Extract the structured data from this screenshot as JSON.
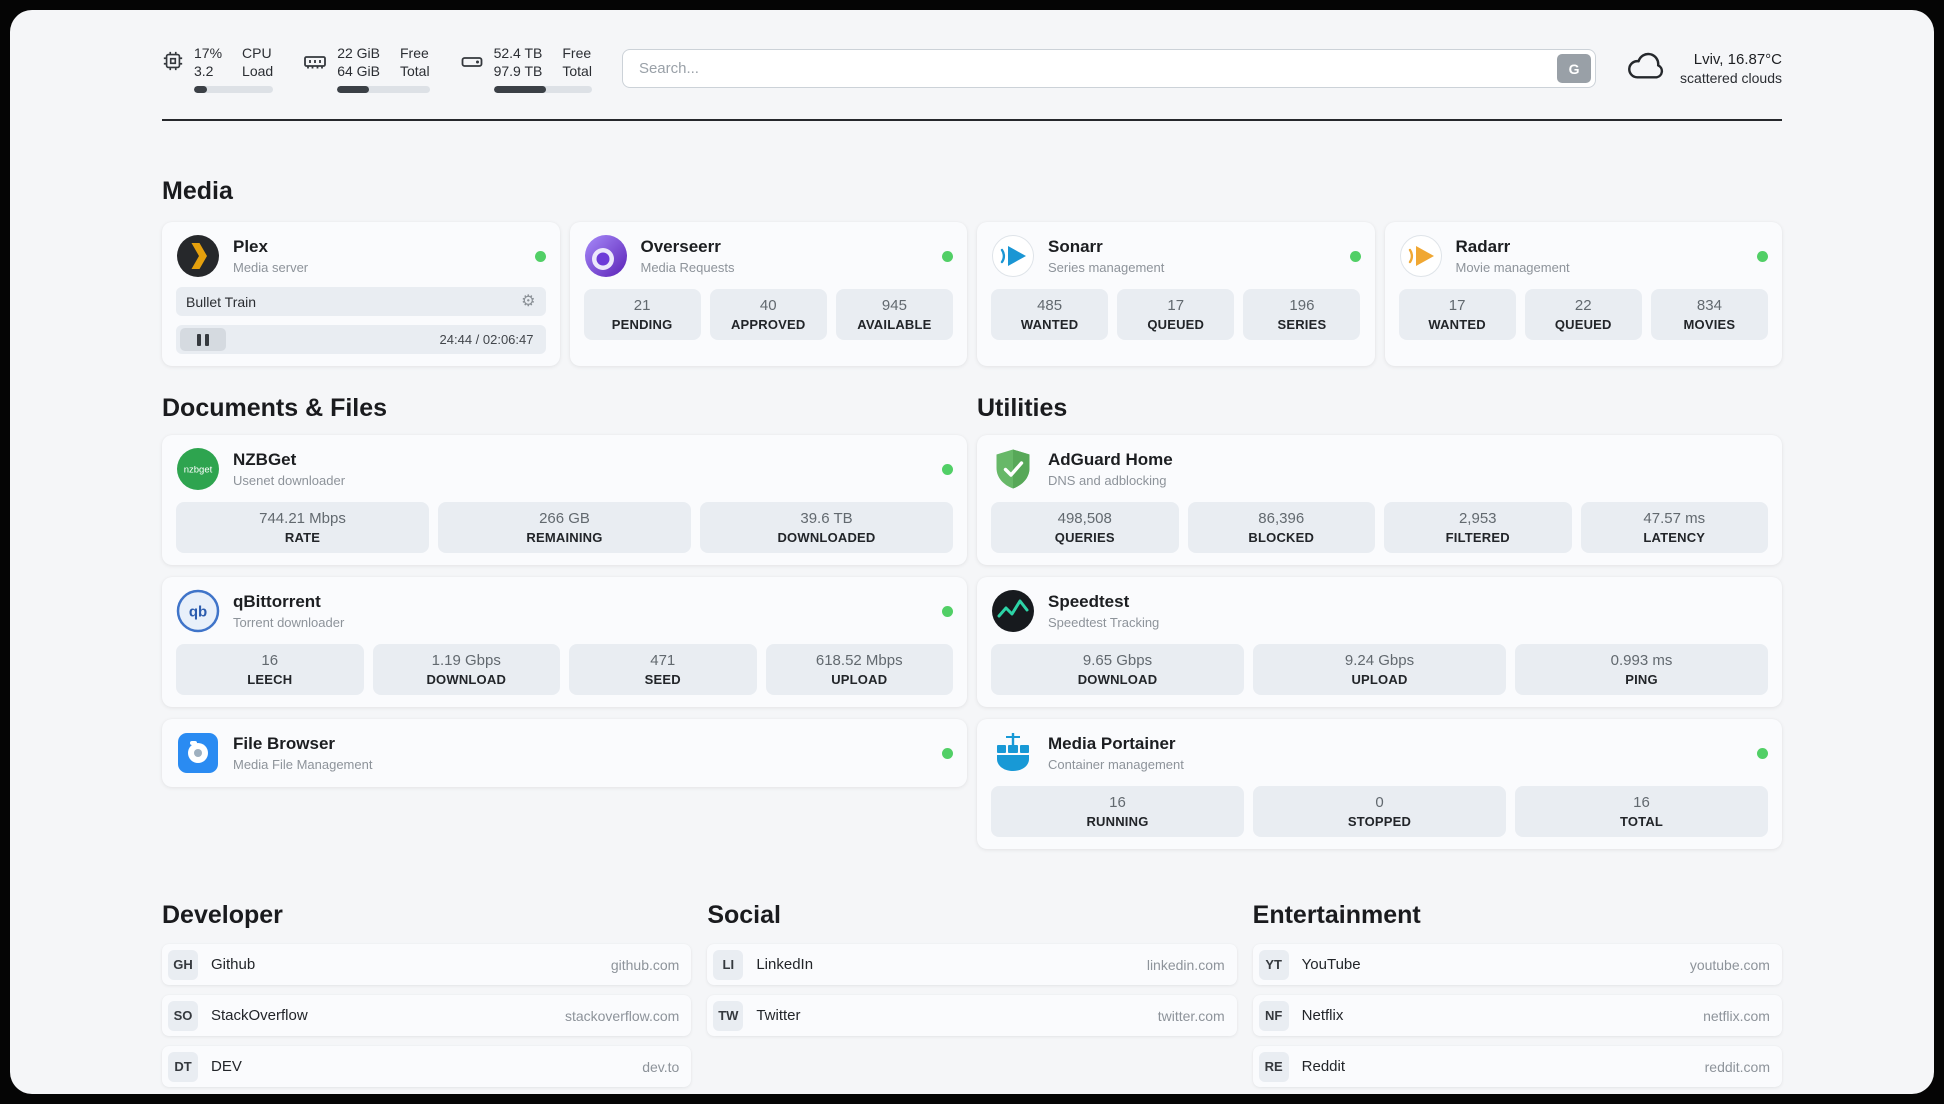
{
  "topbar": {
    "cpu": {
      "percent": "17%",
      "load": "3.2",
      "label_line1": "CPU",
      "label_line2": "Load",
      "bar_pct": 17
    },
    "ram": {
      "free": "22 GiB",
      "total": "64 GiB",
      "label_line1": "Free",
      "label_line2": "Total",
      "bar_pct": 34
    },
    "disk": {
      "free": "52.4 TB",
      "total": "97.9 TB",
      "label_line1": "Free",
      "label_line2": "Total",
      "bar_pct": 53
    },
    "search": {
      "placeholder": "Search...",
      "button_label": "G"
    },
    "weather": {
      "location": "Lviv, 16.87°C",
      "condition": "scattered clouds"
    }
  },
  "media": {
    "title": "Media",
    "plex": {
      "name": "Plex",
      "subtitle": "Media server",
      "now_playing": "Bullet Train",
      "time": "24:44 / 02:06:47"
    },
    "overseerr": {
      "name": "Overseerr",
      "subtitle": "Media Requests",
      "stats": [
        {
          "value": "21",
          "label": "PENDING"
        },
        {
          "value": "40",
          "label": "APPROVED"
        },
        {
          "value": "945",
          "label": "AVAILABLE"
        }
      ]
    },
    "sonarr": {
      "name": "Sonarr",
      "subtitle": "Series management",
      "stats": [
        {
          "value": "485",
          "label": "WANTED"
        },
        {
          "value": "17",
          "label": "QUEUED"
        },
        {
          "value": "196",
          "label": "SERIES"
        }
      ]
    },
    "radarr": {
      "name": "Radarr",
      "subtitle": "Movie management",
      "stats": [
        {
          "value": "17",
          "label": "WANTED"
        },
        {
          "value": "22",
          "label": "QUEUED"
        },
        {
          "value": "834",
          "label": "MOVIES"
        }
      ]
    }
  },
  "documents": {
    "title": "Documents & Files",
    "nzbget": {
      "name": "NZBGet",
      "subtitle": "Usenet downloader",
      "stats": [
        {
          "value": "744.21 Mbps",
          "label": "RATE"
        },
        {
          "value": "266 GB",
          "label": "REMAINING"
        },
        {
          "value": "39.6 TB",
          "label": "DOWNLOADED"
        }
      ]
    },
    "qbittorrent": {
      "name": "qBittorrent",
      "subtitle": "Torrent downloader",
      "stats": [
        {
          "value": "16",
          "label": "LEECH"
        },
        {
          "value": "1.19 Gbps",
          "label": "DOWNLOAD"
        },
        {
          "value": "471",
          "label": "SEED"
        },
        {
          "value": "618.52 Mbps",
          "label": "UPLOAD"
        }
      ]
    },
    "filebrowser": {
      "name": "File Browser",
      "subtitle": "Media File Management"
    }
  },
  "utilities": {
    "title": "Utilities",
    "adguard": {
      "name": "AdGuard Home",
      "subtitle": "DNS and adblocking",
      "stats": [
        {
          "value": "498,508",
          "label": "QUERIES"
        },
        {
          "value": "86,396",
          "label": "BLOCKED"
        },
        {
          "value": "2,953",
          "label": "FILTERED"
        },
        {
          "value": "47.57 ms",
          "label": "LATENCY"
        }
      ]
    },
    "speedtest": {
      "name": "Speedtest",
      "subtitle": "Speedtest Tracking",
      "stats": [
        {
          "value": "9.65 Gbps",
          "label": "DOWNLOAD"
        },
        {
          "value": "9.24 Gbps",
          "label": "UPLOAD"
        },
        {
          "value": "0.993 ms",
          "label": "PING"
        }
      ]
    },
    "portainer": {
      "name": "Media Portainer",
      "subtitle": "Container management",
      "stats": [
        {
          "value": "16",
          "label": "RUNNING"
        },
        {
          "value": "0",
          "label": "STOPPED"
        },
        {
          "value": "16",
          "label": "TOTAL"
        }
      ]
    }
  },
  "bookmarks": {
    "developer": {
      "title": "Developer",
      "items": [
        {
          "abbr": "GH",
          "name": "Github",
          "url": "github.com"
        },
        {
          "abbr": "SO",
          "name": "StackOverflow",
          "url": "stackoverflow.com"
        },
        {
          "abbr": "DT",
          "name": "DEV",
          "url": "dev.to"
        }
      ]
    },
    "social": {
      "title": "Social",
      "items": [
        {
          "abbr": "LI",
          "name": "LinkedIn",
          "url": "linkedin.com"
        },
        {
          "abbr": "TW",
          "name": "Twitter",
          "url": "twitter.com"
        }
      ]
    },
    "entertainment": {
      "title": "Entertainment",
      "items": [
        {
          "abbr": "YT",
          "name": "YouTube",
          "url": "youtube.com"
        },
        {
          "abbr": "NF",
          "name": "Netflix",
          "url": "netflix.com"
        },
        {
          "abbr": "RE",
          "name": "Reddit",
          "url": "reddit.com"
        }
      ]
    }
  },
  "colors": {
    "status_online": "#51cf66",
    "plex_accent": "#e5a00d",
    "sonarr_accent": "#1a96d4",
    "radarr_accent": "#f0a732",
    "nzbget_accent": "#2ea44f",
    "adguard_accent": "#67b868",
    "speedtest_accent": "#2dd4a7",
    "portainer_accent": "#1899d6"
  }
}
